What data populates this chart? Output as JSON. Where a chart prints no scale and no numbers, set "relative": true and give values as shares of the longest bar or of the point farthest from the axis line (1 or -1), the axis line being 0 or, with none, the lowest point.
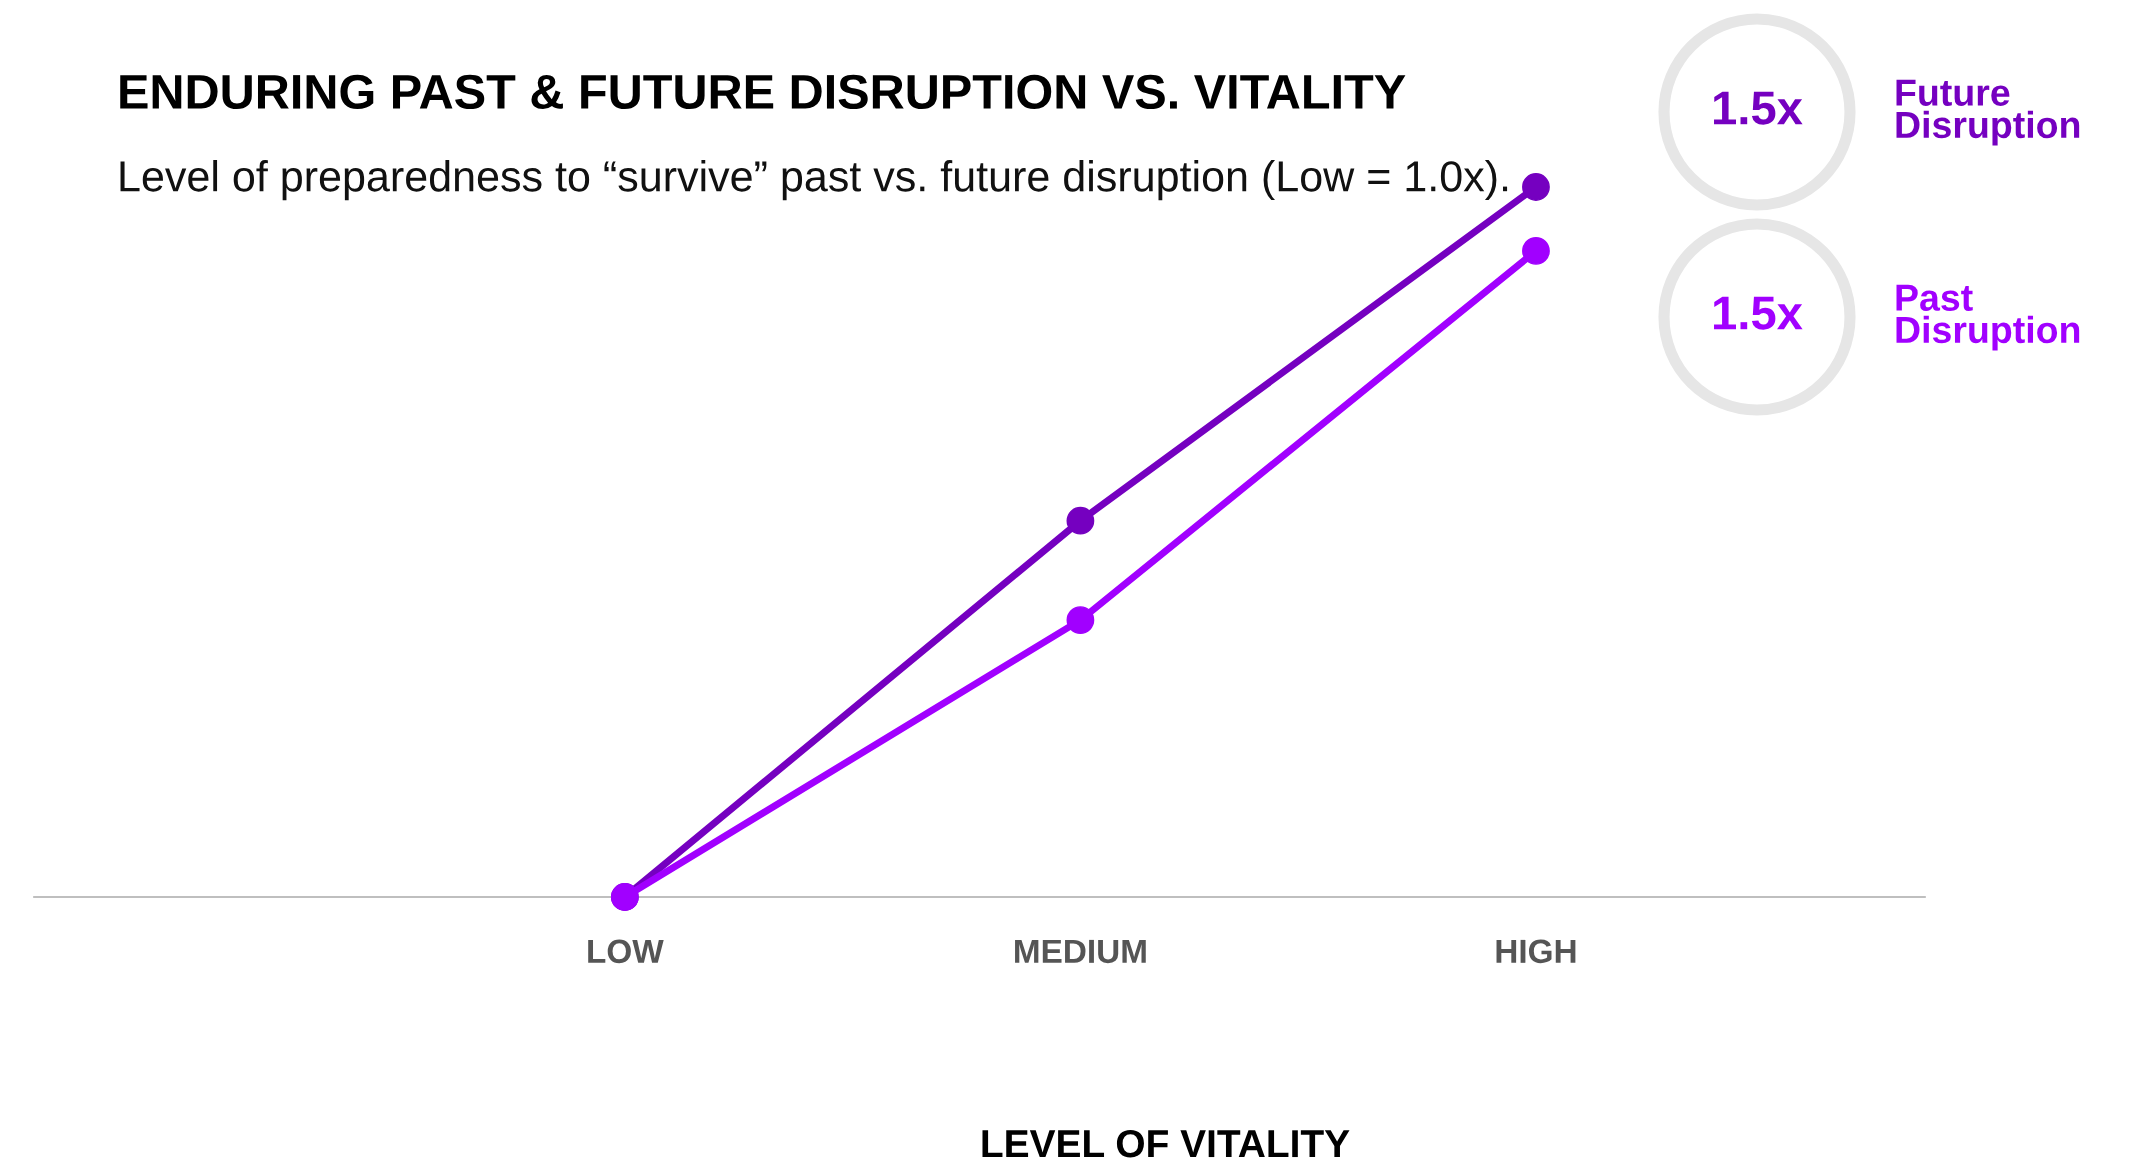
{
  "chart_data": {
    "type": "line",
    "title": "ENDURING PAST & FUTURE DISRUPTION VS. VITALITY",
    "subtitle": "Level of preparedness to “survive” past vs. future disruption (Low = 1.0x).",
    "xlabel": "LEVEL OF VITALITY",
    "categories": [
      "LOW",
      "MEDIUM",
      "HIGH"
    ],
    "annotations": [
      "1.5x",
      "1.5x"
    ],
    "relative": true,
    "marker": "circle",
    "line_style": "solid",
    "grid": false,
    "legend": "top right",
    "series": [
      {
        "name": "Future Disruption",
        "color": "#7500c0",
        "values": [
          0,
          0.53,
          1
        ]
      },
      {
        "name": "Past Disruption",
        "color": "#a100ff",
        "values": [
          0,
          0.39,
          0.91
        ]
      }
    ]
  }
}
